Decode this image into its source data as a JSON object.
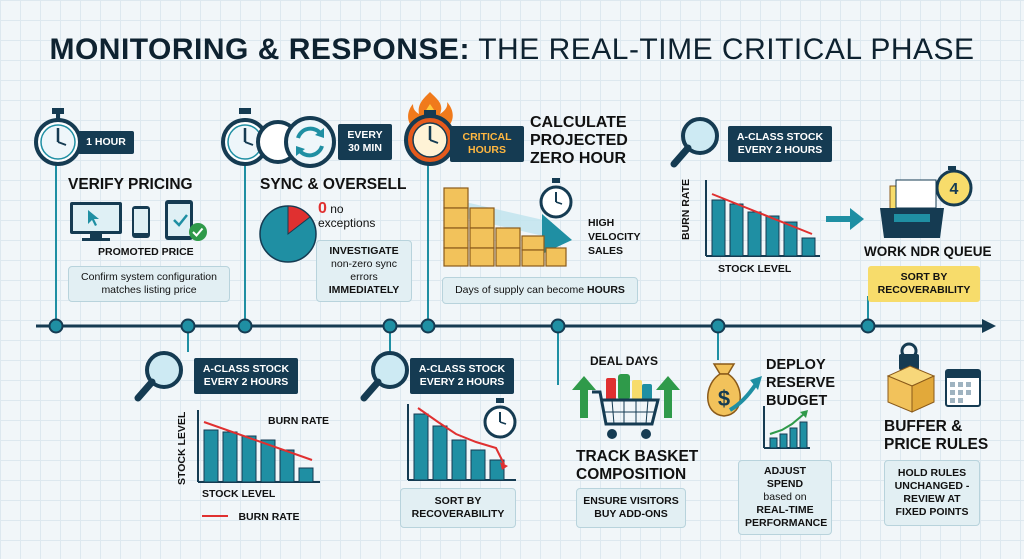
{
  "title": {
    "bold": "MONITORING & RESPONSE:",
    "rest": "THE REAL-TIME CRITICAL PHASE"
  },
  "colors": {
    "navy": "#153b52",
    "teal": "#1f8fa3",
    "red": "#e03030",
    "yellow": "#f7dc6b",
    "orange": "#f07a1c",
    "green": "#2f9a4a"
  },
  "verify": {
    "tag": "1 HOUR",
    "heading": "VERIFY PRICING",
    "caption": "PROMOTED PRICE",
    "note": "Confirm system configuration matches listing price"
  },
  "sync": {
    "tag_line1": "EVERY",
    "tag_line2": "30 MIN",
    "heading": "SYNC & OVERSELL",
    "zero": "0",
    "no": "no",
    "exceptions": "exceptions",
    "box_bold1": "INVESTIGATE",
    "box_text": "non-zero sync errors",
    "box_bold2": "IMMEDIATELY"
  },
  "critical": {
    "tag_line1": "CRITICAL",
    "tag_line2": "HOURS",
    "heading_line1": "CALCULATE",
    "heading_line2": "PROJECTED",
    "heading_line3": "ZERO HOUR",
    "velocity_line1": "HIGH",
    "velocity_line2": "VELOCITY",
    "velocity_line3": "SALES",
    "note_text": "Days of supply can become",
    "note_bold": "HOURS"
  },
  "top_burn": {
    "tag_line1": "A-CLASS STOCK",
    "tag_line2": "EVERY 2 HOURS",
    "ylabel": "BURN RATE",
    "xlabel": "STOCK LEVEL"
  },
  "ndr": {
    "heading": "WORK NDR QUEUE",
    "badge": "SORT BY RECOVERABILITY",
    "number": "4"
  },
  "bottom_burn1": {
    "tag_line1": "A-CLASS STOCK",
    "tag_line2": "EVERY 2 HOURS",
    "ylabel": "STOCK LEVEL",
    "line_label": "BURN RATE",
    "xlabel": "STOCK LEVEL",
    "legend": "BURN RATE"
  },
  "bottom_burn2": {
    "tag_line1": "A-CLASS STOCK",
    "tag_line2": "EVERY 2 HOURS",
    "box": "SORT BY RECOVERABILITY"
  },
  "deal": {
    "label": "DEAL DAYS",
    "heading_line1": "TRACK BASKET",
    "heading_line2": "COMPOSITION",
    "box": "ENSURE VISITORS BUY ADD-ONS"
  },
  "reserve": {
    "heading_line1": "DEPLOY",
    "heading_line2": "RESERVE",
    "heading_line3": "BUDGET",
    "box_line1": "ADJUST SPEND",
    "box_line2": "based on",
    "box_line3": "REAL-TIME",
    "box_line4": "PERFORMANCE"
  },
  "buffer": {
    "heading_line1": "BUFFER &",
    "heading_line2": "PRICE RULES",
    "box": "HOLD RULES UNCHANGED - REVIEW AT FIXED POINTS"
  }
}
